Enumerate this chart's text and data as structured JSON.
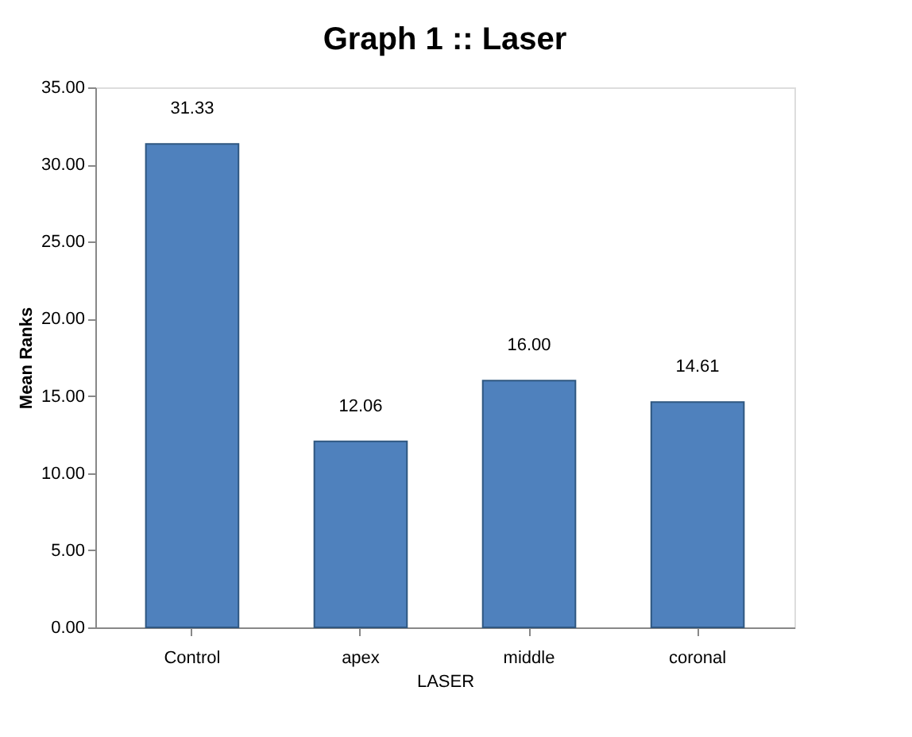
{
  "chart_data": {
    "type": "bar",
    "title": "Graph 1 :: Laser",
    "xlabel": "LASER",
    "ylabel": "Mean Ranks",
    "categories": [
      "Control",
      "apex",
      "middle",
      "coronal"
    ],
    "values": [
      31.33,
      12.06,
      16.0,
      14.61
    ],
    "value_labels": [
      "31.33",
      "12.06",
      "16.00",
      "14.61"
    ],
    "color": "#4f81bd",
    "ylim": [
      0,
      35
    ],
    "yticks": [
      {
        "value": 0,
        "label": "0.00"
      },
      {
        "value": 5,
        "label": "5.00"
      },
      {
        "value": 10,
        "label": "10.00"
      },
      {
        "value": 15,
        "label": "15.00"
      },
      {
        "value": 20,
        "label": "20.00"
      },
      {
        "value": 25,
        "label": "25.00"
      },
      {
        "value": 30,
        "label": "30.00"
      },
      {
        "value": 35,
        "label": "35.00"
      }
    ],
    "grid": false
  }
}
